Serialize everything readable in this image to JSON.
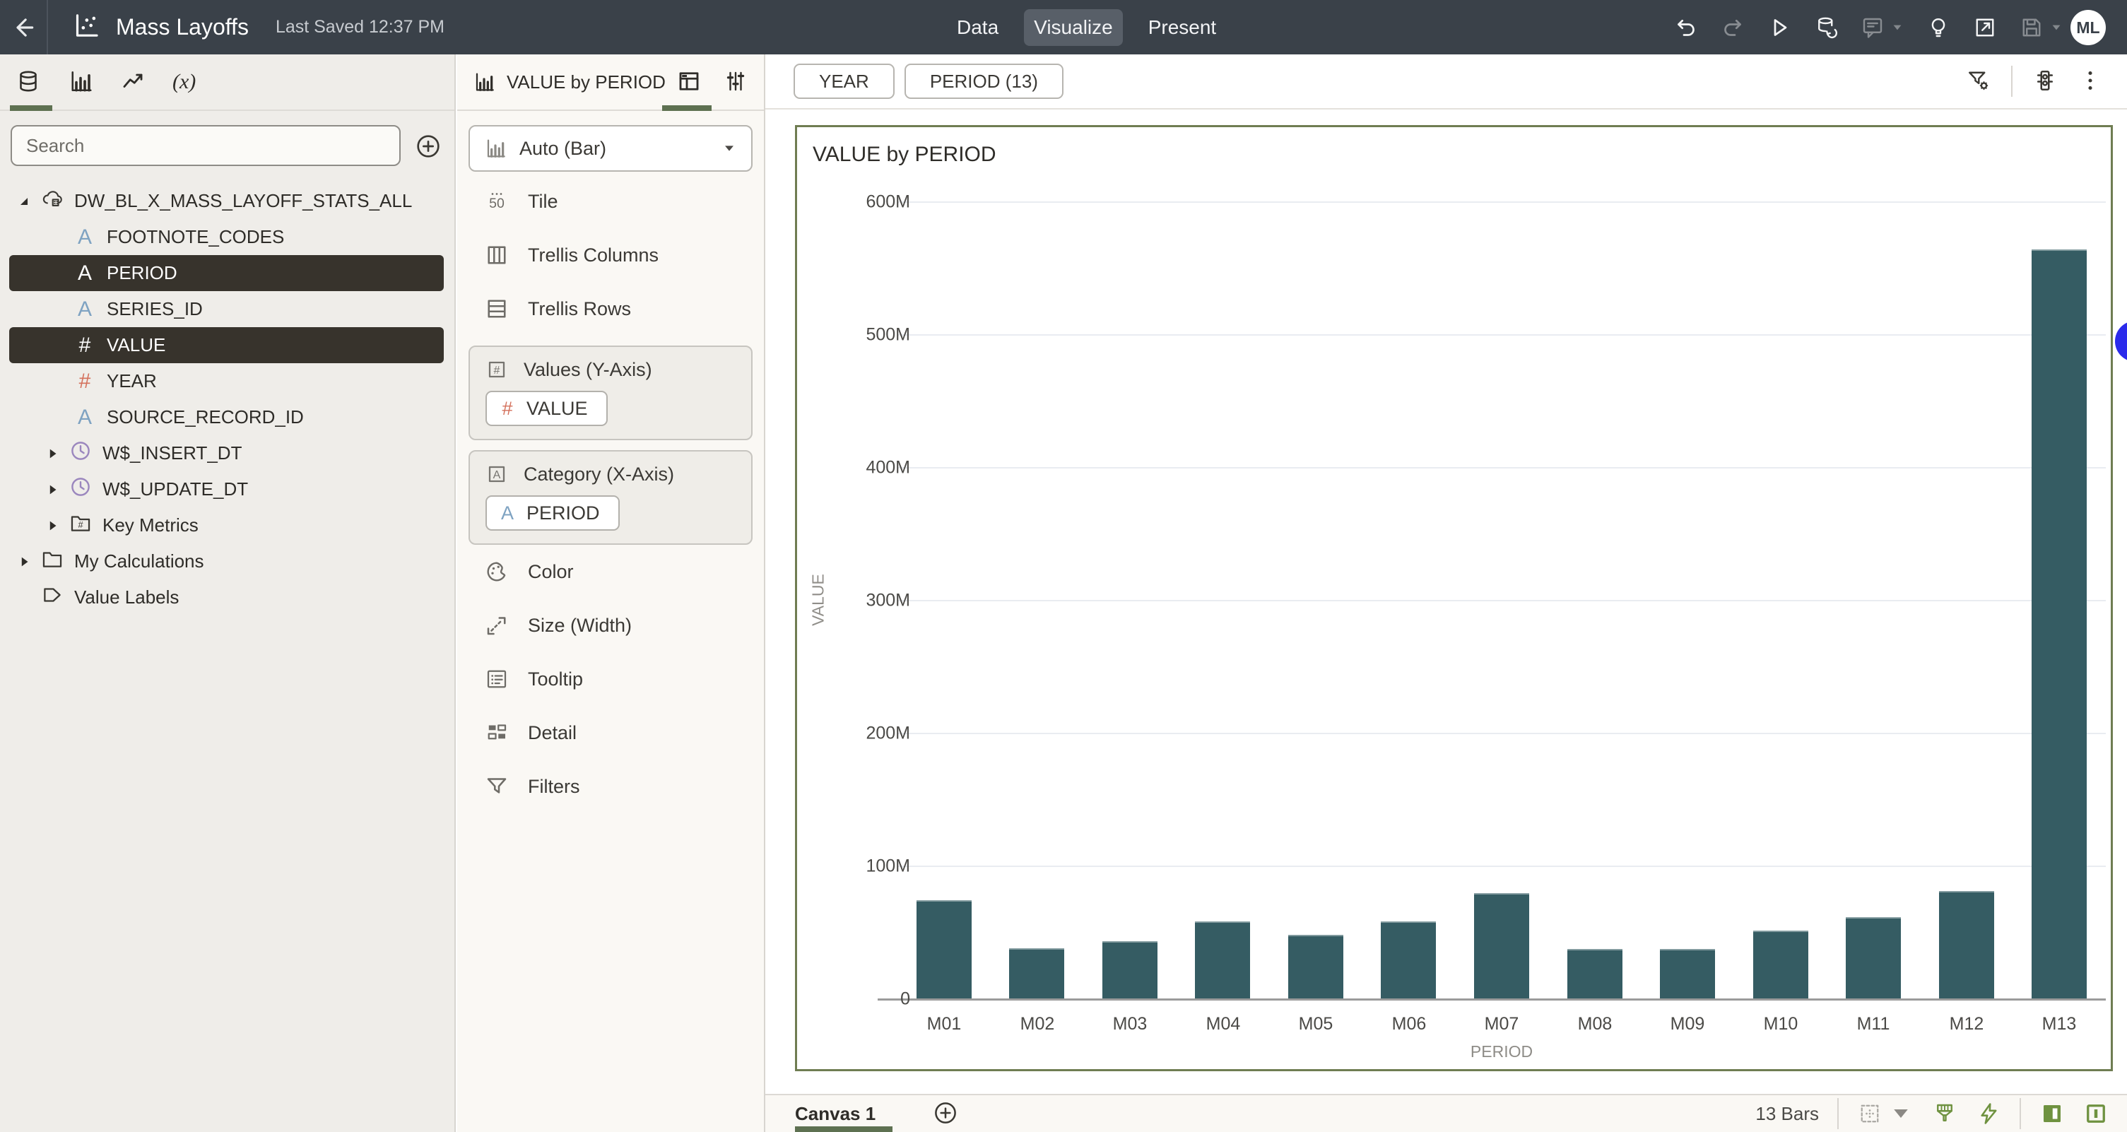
{
  "topbar": {
    "title": "Mass Layoffs",
    "last_saved": "Last Saved 12:37 PM",
    "tabs": [
      {
        "label": "Data",
        "active": false
      },
      {
        "label": "Visualize",
        "active": true
      },
      {
        "label": "Present",
        "active": false
      }
    ],
    "actions": [
      {
        "name": "undo",
        "enabled": true,
        "caret": false
      },
      {
        "name": "redo",
        "enabled": false,
        "caret": false
      },
      {
        "name": "preview",
        "enabled": true,
        "caret": false
      },
      {
        "name": "refresh-data",
        "enabled": true,
        "caret": false
      },
      {
        "name": "comments",
        "enabled": false,
        "caret": true
      },
      {
        "name": "insights",
        "enabled": true,
        "caret": false
      },
      {
        "name": "export",
        "enabled": true,
        "caret": false
      },
      {
        "name": "save",
        "enabled": false,
        "caret": true
      }
    ],
    "avatar": "ML"
  },
  "left_panel": {
    "search_placeholder": "Search",
    "tree": [
      {
        "label": "DW_BL_X_MASS_LAYOFF_STATS_ALL",
        "icon": "dataset",
        "level": "root",
        "expanded": true,
        "selected": false
      },
      {
        "label": "FOOTNOTE_CODES",
        "icon": "text-attr",
        "level": "field",
        "selected": false
      },
      {
        "label": "PERIOD",
        "icon": "text-attr",
        "level": "field",
        "selected": true
      },
      {
        "label": "SERIES_ID",
        "icon": "text-attr",
        "level": "field",
        "selected": false
      },
      {
        "label": "VALUE",
        "icon": "number",
        "level": "field",
        "selected": true
      },
      {
        "label": "YEAR",
        "icon": "number",
        "level": "field",
        "selected": false
      },
      {
        "label": "SOURCE_RECORD_ID",
        "icon": "text-attr",
        "level": "field",
        "selected": false
      },
      {
        "label": "W$_INSERT_DT",
        "icon": "time",
        "level": "field-exp",
        "selected": false
      },
      {
        "label": "W$_UPDATE_DT",
        "icon": "time",
        "level": "field-exp",
        "selected": false
      },
      {
        "label": "Key Metrics",
        "icon": "metrics",
        "level": "field-exp",
        "selected": false
      },
      {
        "label": "My Calculations",
        "icon": "folder",
        "level": "root-exp",
        "selected": false
      },
      {
        "label": "Value Labels",
        "icon": "tag",
        "level": "root-plain",
        "selected": false
      }
    ]
  },
  "grammar_panel": {
    "title": "VALUE by PERIOD",
    "viz_type_label": "Auto (Bar)",
    "rows_top": [
      {
        "label": "Tile",
        "icon": "tile"
      },
      {
        "label": "Trellis Columns",
        "icon": "trellis-columns"
      },
      {
        "label": "Trellis Rows",
        "icon": "trellis-rows"
      }
    ],
    "drop_zones": [
      {
        "label": "Values (Y-Axis)",
        "icon": "num-box",
        "chips": [
          {
            "label": "VALUE",
            "icon": "number"
          }
        ]
      },
      {
        "label": "Category (X-Axis)",
        "icon": "text-box",
        "chips": [
          {
            "label": "PERIOD",
            "icon": "text-attr"
          }
        ]
      }
    ],
    "rows_bottom": [
      {
        "label": "Color",
        "icon": "color"
      },
      {
        "label": "Size (Width)",
        "icon": "size"
      },
      {
        "label": "Tooltip",
        "icon": "tooltip"
      },
      {
        "label": "Detail",
        "icon": "detail"
      },
      {
        "label": "Filters",
        "icon": "filters"
      }
    ]
  },
  "filter_bar": {
    "pills": [
      {
        "label": "YEAR"
      },
      {
        "label": "PERIOD (13)"
      }
    ]
  },
  "chart_data": {
    "type": "bar",
    "title": "VALUE by PERIOD",
    "categories": [
      "M01",
      "M02",
      "M03",
      "M04",
      "M05",
      "M06",
      "M07",
      "M08",
      "M09",
      "M10",
      "M11",
      "M12",
      "M13"
    ],
    "values_millions": [
      74,
      38,
      43,
      58,
      48,
      58,
      79,
      37,
      37,
      51,
      61,
      81,
      564
    ],
    "xlabel": "PERIOD",
    "ylabel": "VALUE",
    "ylim_millions": [
      0,
      600
    ],
    "ytick_labels": [
      "0",
      "100M",
      "200M",
      "300M",
      "400M",
      "500M",
      "600M"
    ],
    "grid": true,
    "legend": "none",
    "bar_color": "#355C63"
  },
  "canvas_bar": {
    "canvas_tab": "Canvas 1",
    "status": "13 Bars"
  },
  "colors": {
    "topbar_bg": "#3A4149",
    "accent_green": "#5E7151",
    "chart_border": "#6F7D52",
    "selected_row_bg": "#37332C",
    "bar": "#355C63",
    "blue_indicator": "#2B2BEB"
  }
}
